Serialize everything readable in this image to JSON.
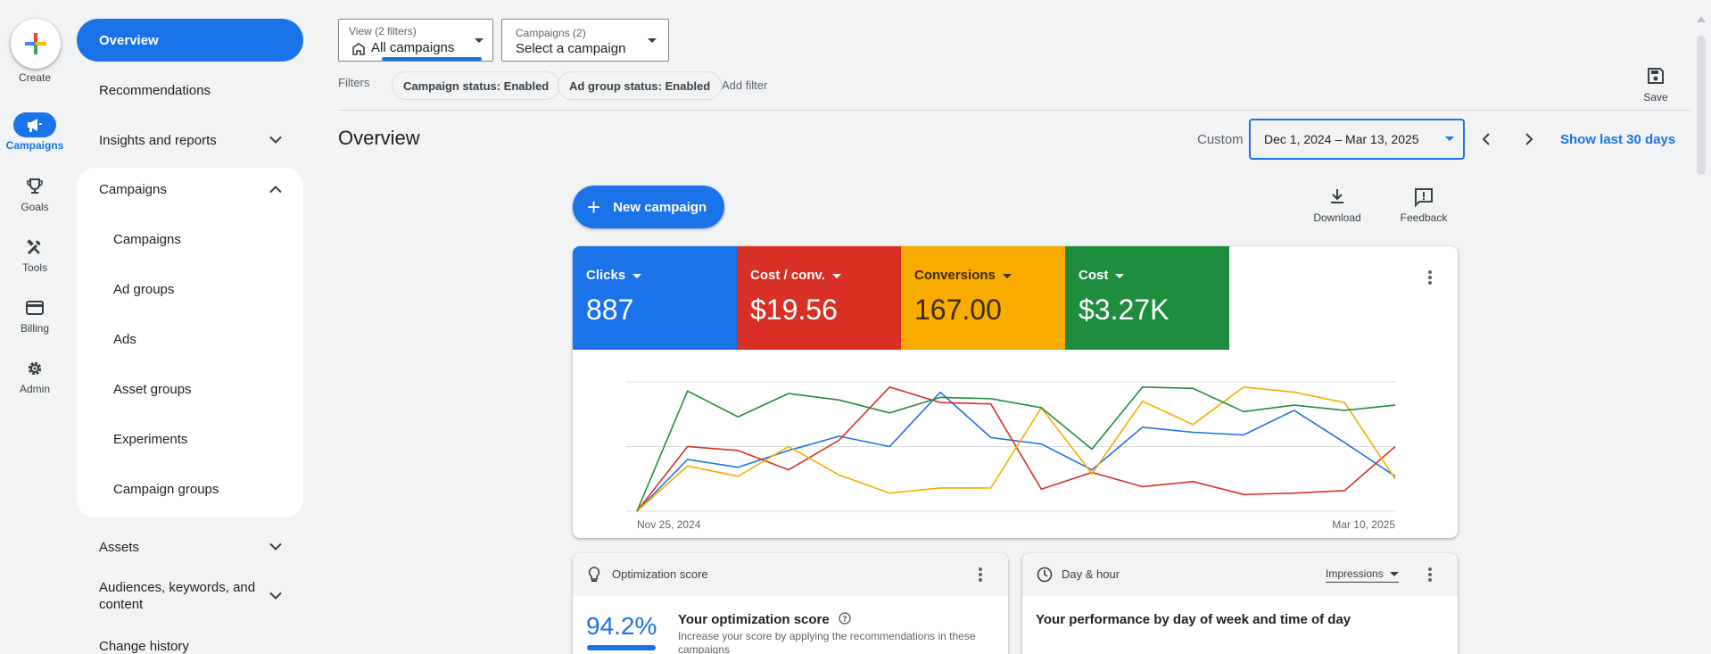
{
  "rail": {
    "create_label": "Create",
    "items": [
      {
        "label": "Campaigns",
        "icon": "megaphone-icon",
        "active": true
      },
      {
        "label": "Goals",
        "icon": "trophy-icon",
        "active": false
      },
      {
        "label": "Tools",
        "icon": "tools-icon",
        "active": false
      },
      {
        "label": "Billing",
        "icon": "credit-card-icon",
        "active": false
      },
      {
        "label": "Admin",
        "icon": "gear-icon",
        "active": false
      }
    ]
  },
  "nav": {
    "overview": "Overview",
    "recommendations": "Recommendations",
    "insights": "Insights and reports",
    "campaigns_header": "Campaigns",
    "sub_items": [
      "Campaigns",
      "Ad groups",
      "Ads",
      "Asset groups",
      "Experiments",
      "Campaign groups"
    ],
    "assets": "Assets",
    "audiences": "Audiences, keywords, and content",
    "change_history": "Change history"
  },
  "top": {
    "view_small": "View (2 filters)",
    "view_main": "All campaigns",
    "campaigns_small": "Campaigns (2)",
    "campaigns_main": "Select a campaign",
    "filters_label": "Filters",
    "chips": [
      "Campaign status: Enabled",
      "Ad group status: Enabled"
    ],
    "add_filter": "Add filter",
    "save_label": "Save"
  },
  "header": {
    "title": "Overview",
    "custom_label": "Custom",
    "date_range": "Dec 1, 2024 – Mar 13, 2025",
    "show_last": "Show last 30 days"
  },
  "actions": {
    "new_campaign": "New campaign",
    "download": "Download",
    "feedback": "Feedback"
  },
  "metrics": [
    {
      "label": "Clicks",
      "value": "887",
      "color": "#1a73e8"
    },
    {
      "label": "Cost / conv.",
      "value": "$19.56",
      "color": "#d93025"
    },
    {
      "label": "Conversions",
      "value": "167.00",
      "color": "#f9ab00"
    },
    {
      "label": "Cost",
      "value": "$3.27K",
      "color": "#1e8e3e"
    }
  ],
  "chart_data": {
    "type": "line",
    "x_start_label": "Nov 25, 2024",
    "x_end_label": "Mar 10, 2025",
    "grid": true,
    "series": [
      {
        "name": "Clicks",
        "color": "#1a73e8",
        "values": [
          0,
          40,
          34,
          47,
          58,
          50,
          92,
          57,
          52,
          32,
          65,
          61,
          59,
          78,
          53,
          27
        ]
      },
      {
        "name": "Cost / conv.",
        "color": "#d93025",
        "values": [
          0,
          50,
          47,
          32,
          55,
          96,
          84,
          83,
          17,
          30,
          19,
          23,
          13,
          14,
          16,
          50
        ]
      },
      {
        "name": "Conversions",
        "color": "#f9ab00",
        "values": [
          0,
          35,
          27,
          50,
          28,
          14,
          18,
          18,
          80,
          29,
          85,
          67,
          96,
          92,
          84,
          25
        ]
      },
      {
        "name": "Cost",
        "color": "#1e8e3e",
        "values": [
          0,
          93,
          73,
          91,
          86,
          76,
          88,
          87,
          80,
          48,
          96,
          95,
          77,
          82,
          78,
          82
        ]
      }
    ]
  },
  "optimization": {
    "title": "Optimization score",
    "score": "94.2%",
    "score_fraction": 0.942,
    "heading": "Your optimization score",
    "description": "Increase your score by applying the recommendations in these campaigns"
  },
  "dayhour": {
    "title": "Day & hour",
    "metric": "Impressions",
    "text": "Your performance by day of week and time of day"
  }
}
